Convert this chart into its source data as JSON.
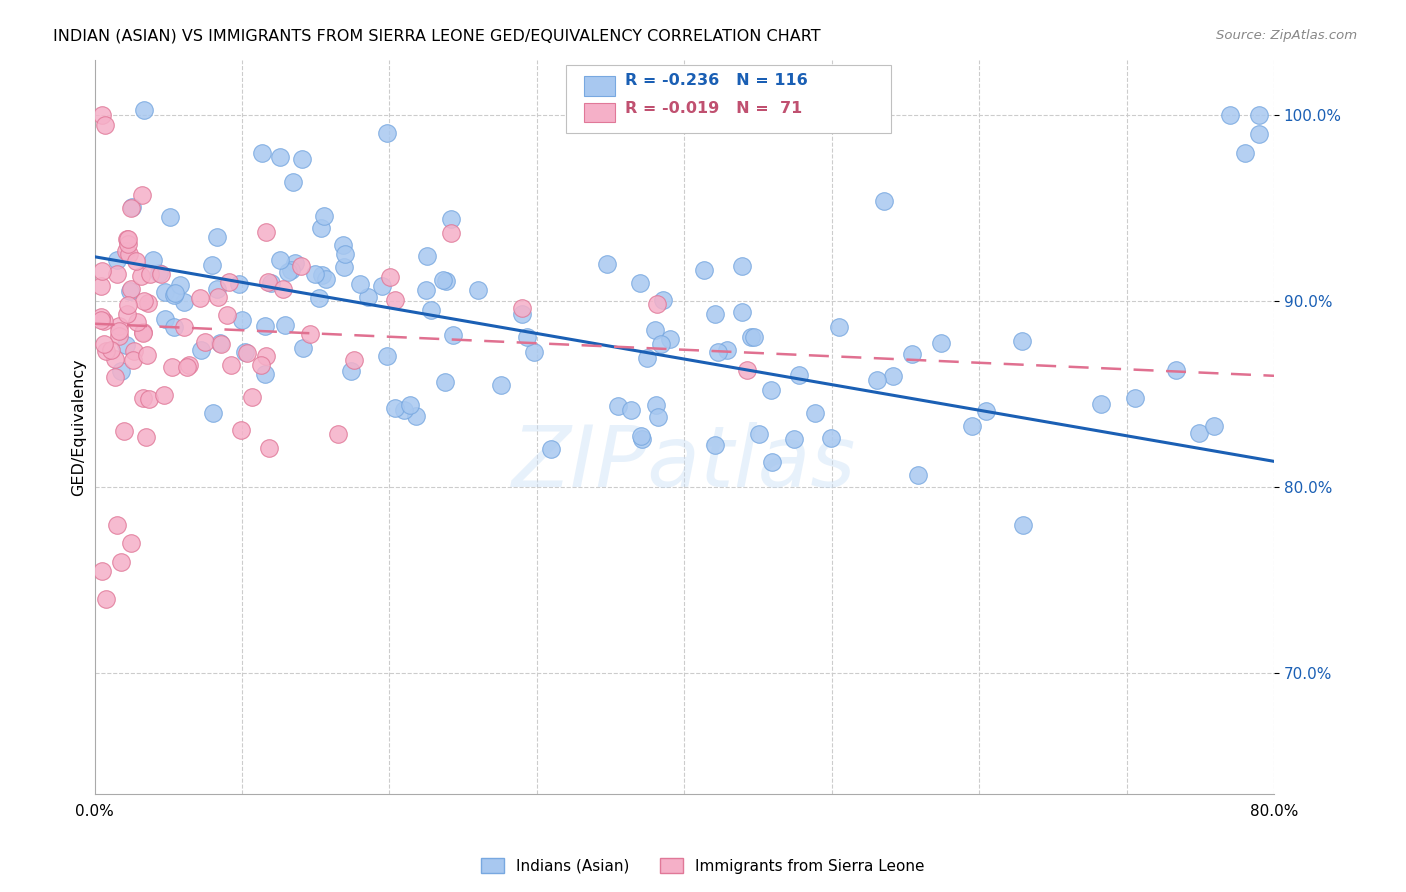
{
  "title": "INDIAN (ASIAN) VS IMMIGRANTS FROM SIERRA LEONE GED/EQUIVALENCY CORRELATION CHART",
  "source": "Source: ZipAtlas.com",
  "ylabel": "GED/Equivalency",
  "legend_label1": "Indians (Asian)",
  "legend_label2": "Immigrants from Sierra Leone",
  "legend_R1": "R = -0.236",
  "legend_N1": "N = 116",
  "legend_R2": "R = -0.019",
  "legend_N2": "N =  71",
  "blue_color": "#a8c8f0",
  "blue_edge_color": "#78a8e0",
  "pink_color": "#f5b0c8",
  "pink_edge_color": "#e07898",
  "trend_blue": "#1a5fb4",
  "trend_pink": "#e07090",
  "watermark": "ZIPatlas",
  "blue_trend_x0": 0.0,
  "blue_trend_y0": 0.924,
  "blue_trend_x1": 0.8,
  "blue_trend_y1": 0.814,
  "pink_trend_x0": 0.0,
  "pink_trend_y0": 0.888,
  "pink_trend_x1": 0.8,
  "pink_trend_y1": 0.86,
  "xlim": [
    0.0,
    0.8
  ],
  "ylim": [
    0.635,
    1.03
  ],
  "y_ticks": [
    0.7,
    0.8,
    0.9,
    1.0
  ],
  "x_ticks": [
    0.0,
    0.1,
    0.2,
    0.3,
    0.4,
    0.5,
    0.6,
    0.7,
    0.8
  ]
}
